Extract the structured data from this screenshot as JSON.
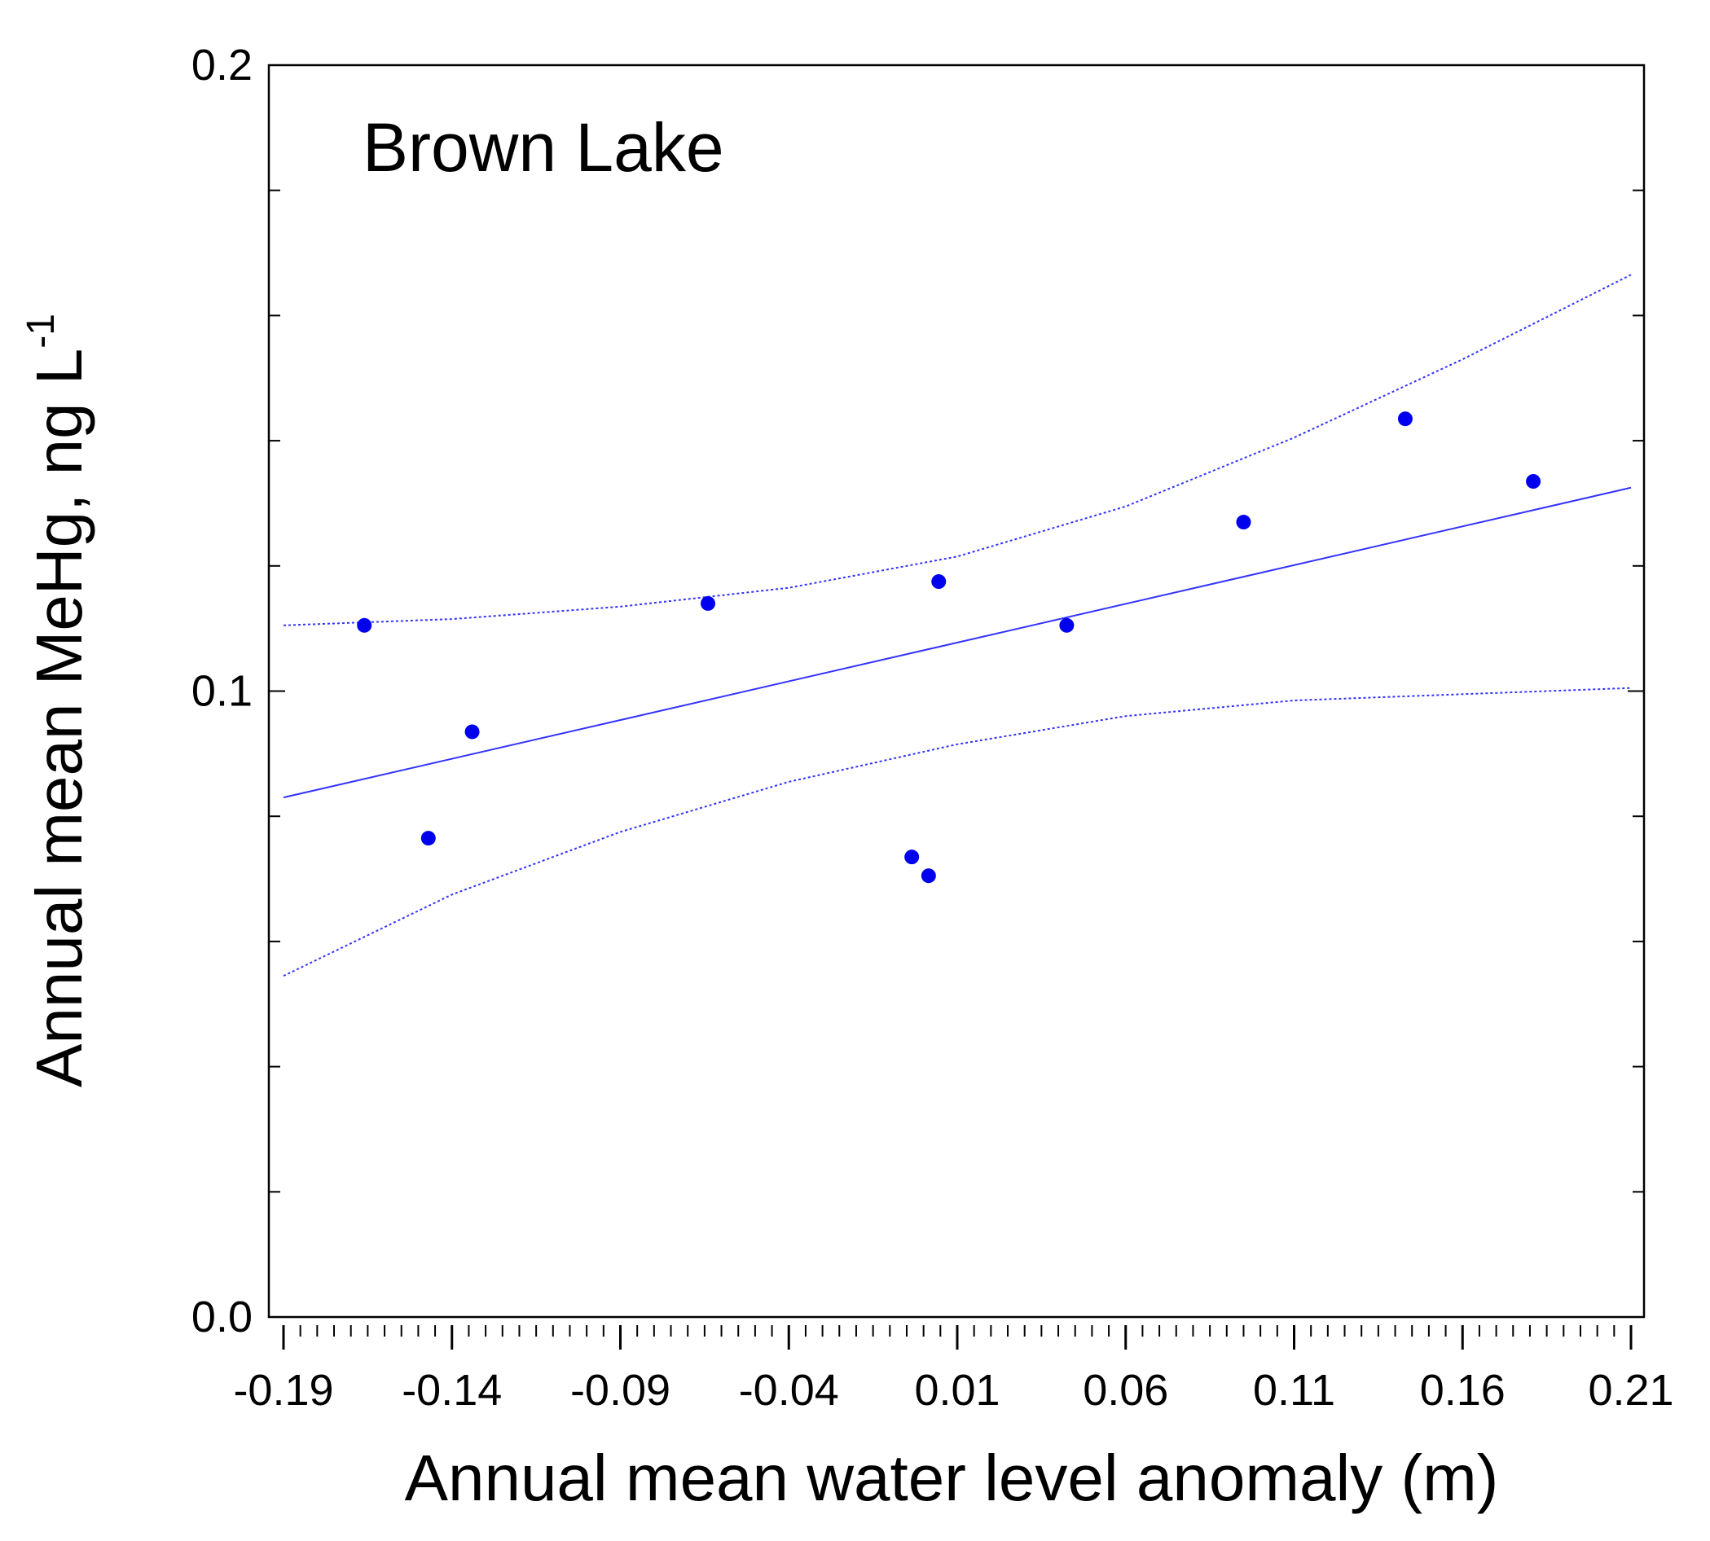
{
  "chart_data": {
    "type": "scatter",
    "annotation": "Brown Lake",
    "xlabel": "Annual mean water level anomaly (m)",
    "ylabel_main": "Annual mean MeHg, ng L",
    "ylabel_sup": "-1",
    "xlim": [
      -0.19,
      0.21
    ],
    "ylim": [
      0.0,
      0.2
    ],
    "x_ticks": [
      "-0.19",
      "-0.14",
      "-0.09",
      "-0.04",
      "0.01",
      "0.06",
      "0.11",
      "0.16",
      "0.21"
    ],
    "y_ticks": [
      "0.0",
      "0.1",
      "0.2"
    ],
    "points": {
      "x": [
        -0.166,
        -0.147,
        -0.134,
        -0.064,
        -0.0035,
        0.0015,
        0.0045,
        0.0425,
        0.095,
        0.143,
        0.181
      ],
      "y": [
        0.1105,
        0.0765,
        0.0935,
        0.114,
        0.0735,
        0.0705,
        0.1175,
        0.1105,
        0.127,
        0.1435,
        0.1335
      ]
    },
    "fit_line": {
      "x": [
        -0.19,
        0.21
      ],
      "y": [
        0.083,
        0.1325
      ]
    },
    "ci_upper": {
      "x": [
        -0.19,
        -0.14,
        -0.09,
        -0.04,
        0.01,
        0.06,
        0.11,
        0.16,
        0.21
      ],
      "y": [
        0.1105,
        0.1115,
        0.1135,
        0.1165,
        0.1215,
        0.1295,
        0.1405,
        0.153,
        0.1665
      ]
    },
    "ci_lower": {
      "x": [
        -0.19,
        -0.14,
        -0.09,
        -0.04,
        0.01,
        0.06,
        0.11,
        0.16,
        0.21
      ],
      "y": [
        0.0545,
        0.0675,
        0.0775,
        0.0855,
        0.0915,
        0.096,
        0.0985,
        0.0995,
        0.1005
      ]
    },
    "colors": {
      "points": "#0000ee",
      "lines": "#3333ff",
      "axes": "#000000"
    }
  }
}
